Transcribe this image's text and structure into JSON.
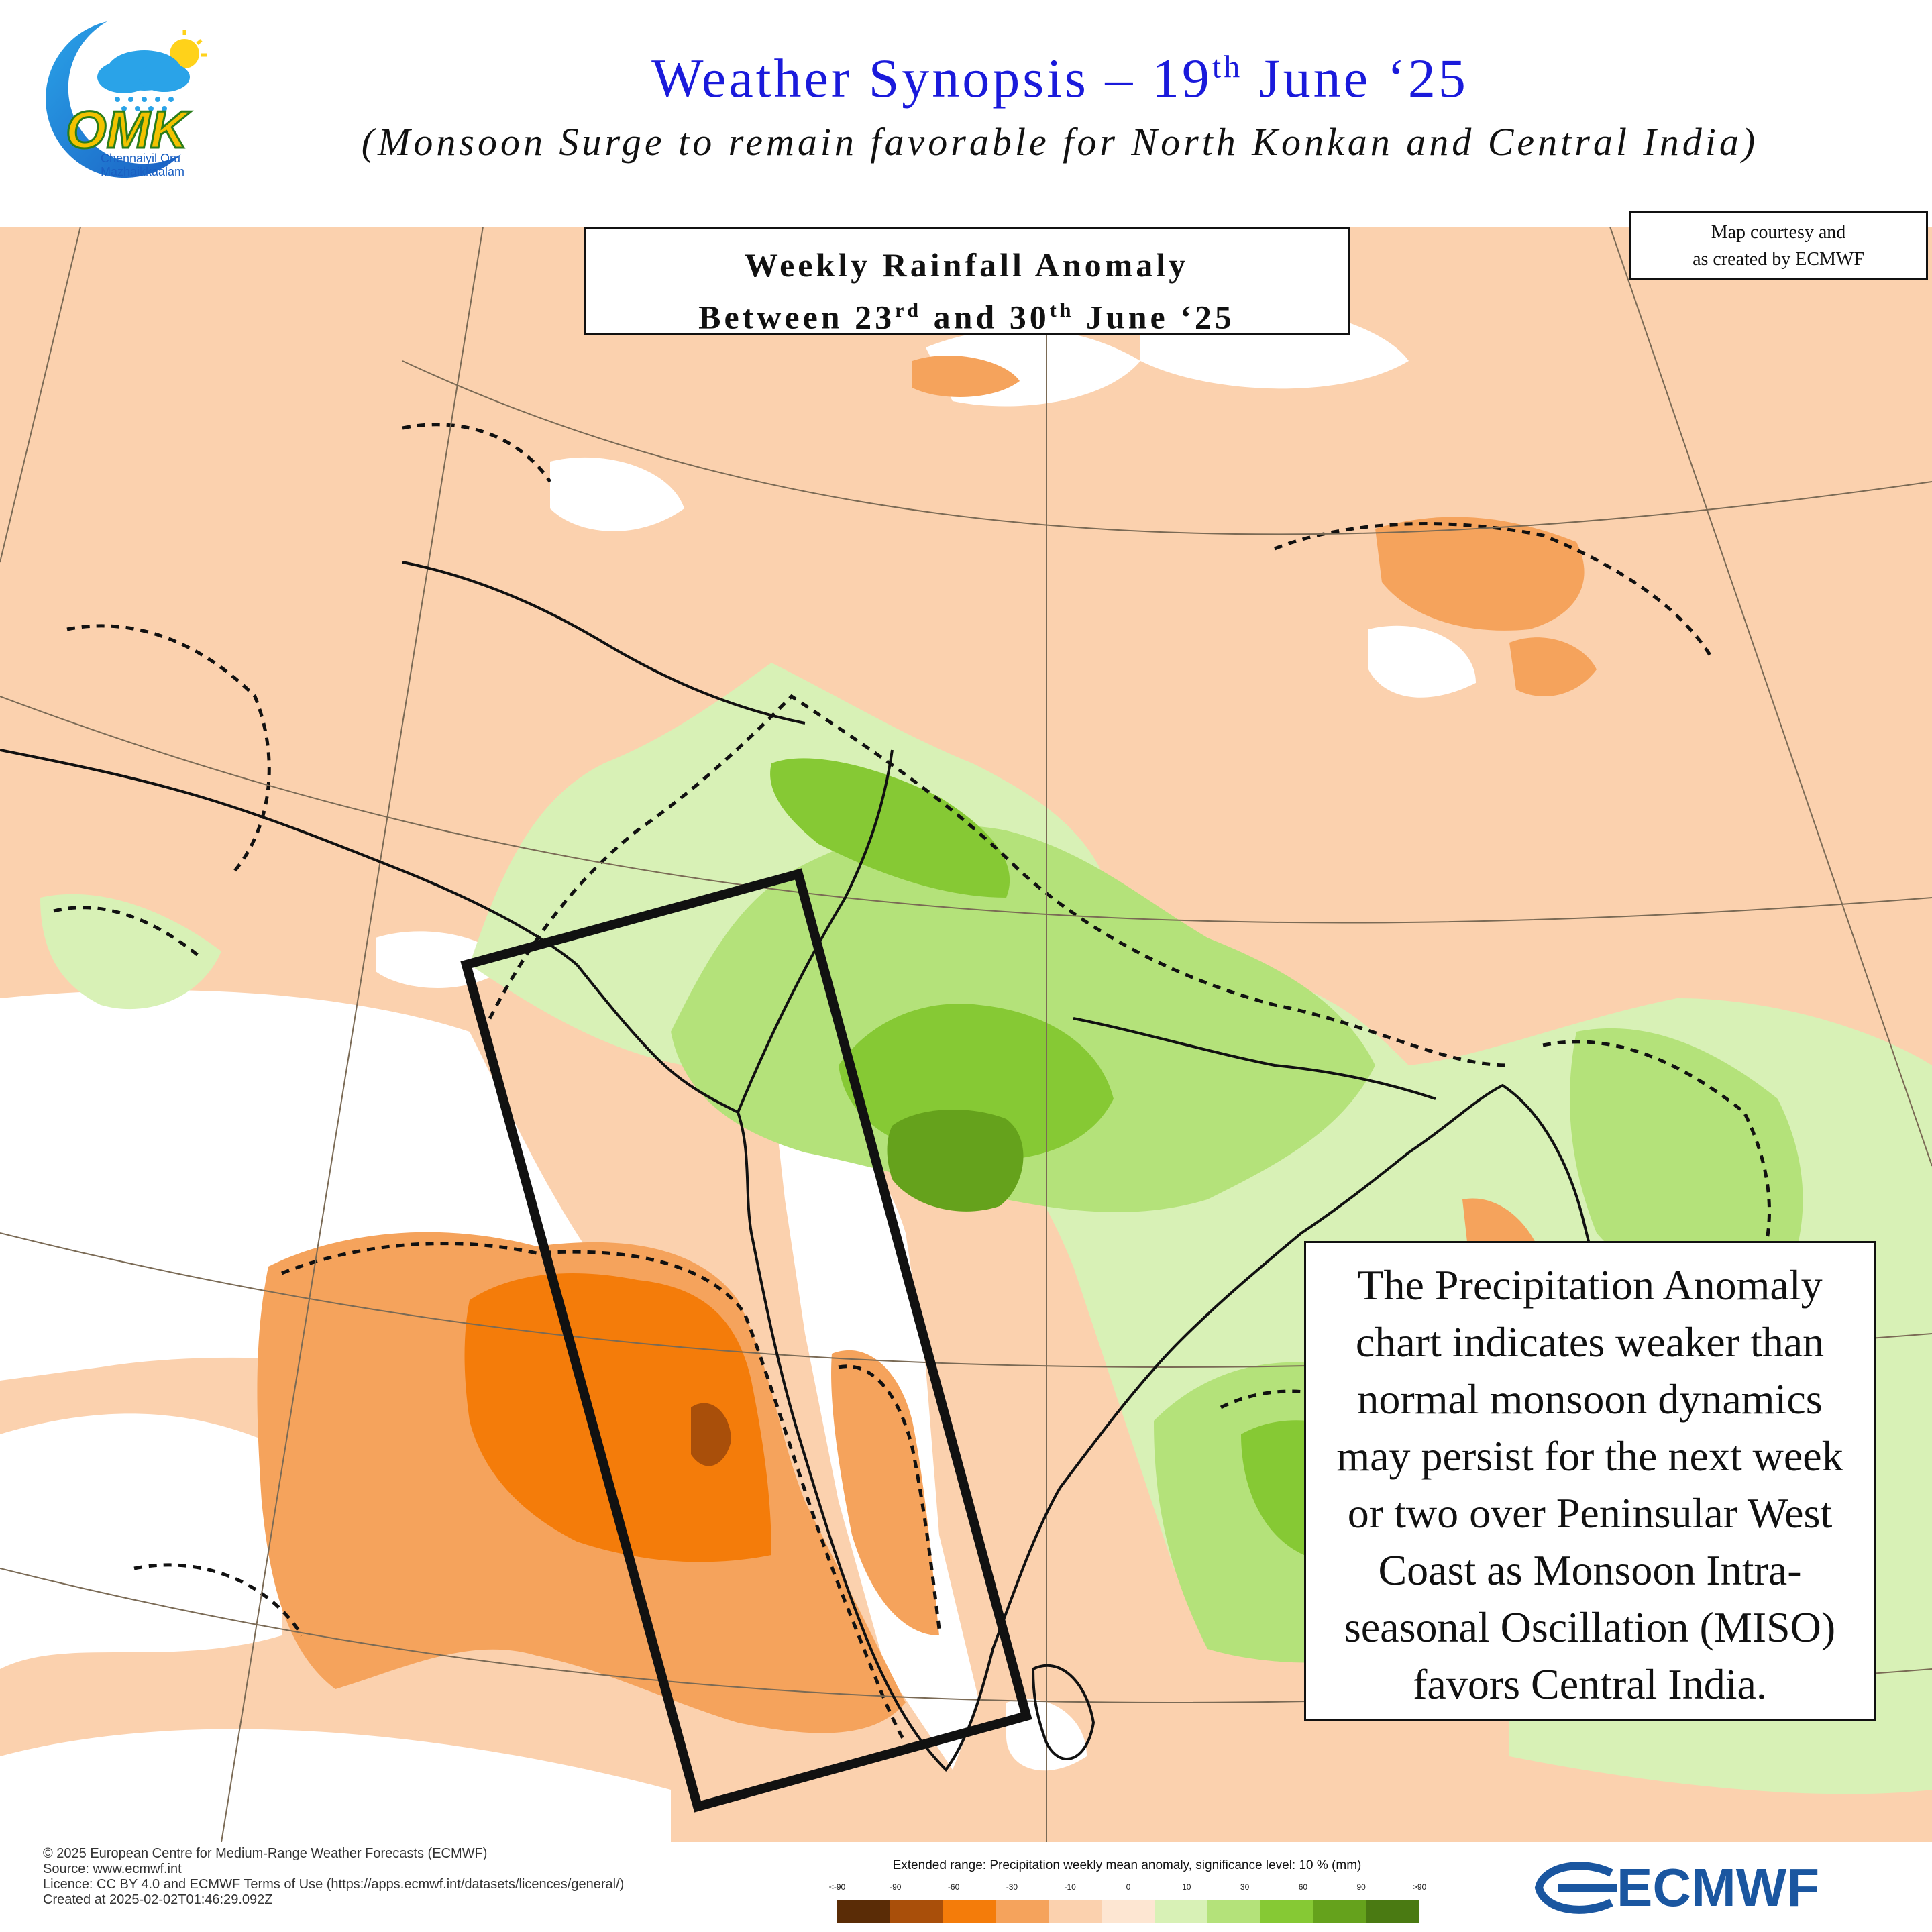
{
  "header": {
    "title_main": "Weather Synopsis – 19",
    "title_sup": "th",
    "title_end": " June ‘25",
    "subtitle": "(Monsoon Surge to remain favorable for North Konkan and Central India)"
  },
  "logo": {
    "letters": "OMK",
    "line1": "Chennaiyil Oru",
    "line2": "Mazhaikkaalam",
    "icon": "cloud-rain-sun-icon"
  },
  "map_title": {
    "line1": "Weekly Rainfall Anomaly",
    "line2_a": "Between 23",
    "line2_sup1": "rd",
    "line2_b": " and 30",
    "line2_sup2": "th",
    "line2_c": " June ‘25"
  },
  "courtesy": {
    "line1": "Map courtesy and",
    "line2": "as created by ECMWF"
  },
  "note": {
    "text": "The Precipitation Anomaly chart indicates weaker than normal monsoon dynamics may persist for the next week or two over Peninsular West Coast as Monsoon Intra-seasonal Oscillation (MISO) favors Central India."
  },
  "footer": {
    "line1": "© 2025 European Centre for Medium-Range Weather Forecasts (ECMWF)",
    "line2": "Source: www.ecmwf.int",
    "line3": "Licence: CC BY 4.0 and ECMWF Terms of Use (https://apps.ecmwf.int/datasets/licences/general/)",
    "line4": "Created at 2025-02-02T01:46:29.092Z"
  },
  "legend": {
    "title": "Extended range: Precipitation weekly mean anomaly, significance level: 10 % (mm)",
    "ticks": [
      "<-90",
      "-90",
      "-60",
      "-30",
      "-10",
      "0",
      "10",
      "30",
      "60",
      "90",
      ">90"
    ],
    "colors": [
      "#5a2c06",
      "#a94f0a",
      "#f47c0a",
      "#f5a35c",
      "#fbd1ae",
      "#fde6d2",
      "#d8f1b6",
      "#b4e27a",
      "#86c934",
      "#65a21c",
      "#4a7a12"
    ]
  },
  "brand": {
    "name": "ECMWF"
  },
  "map_colors": {
    "very_dry": "#a94f0a",
    "dry_strong": "#f47c0a",
    "dry": "#f5a35c",
    "slightly_dry": "#fbd1ae",
    "slightly_wet": "#d8f1b6",
    "wet": "#b4e27a",
    "very_wet": "#86c934",
    "extreme_wet": "#65a21c"
  }
}
